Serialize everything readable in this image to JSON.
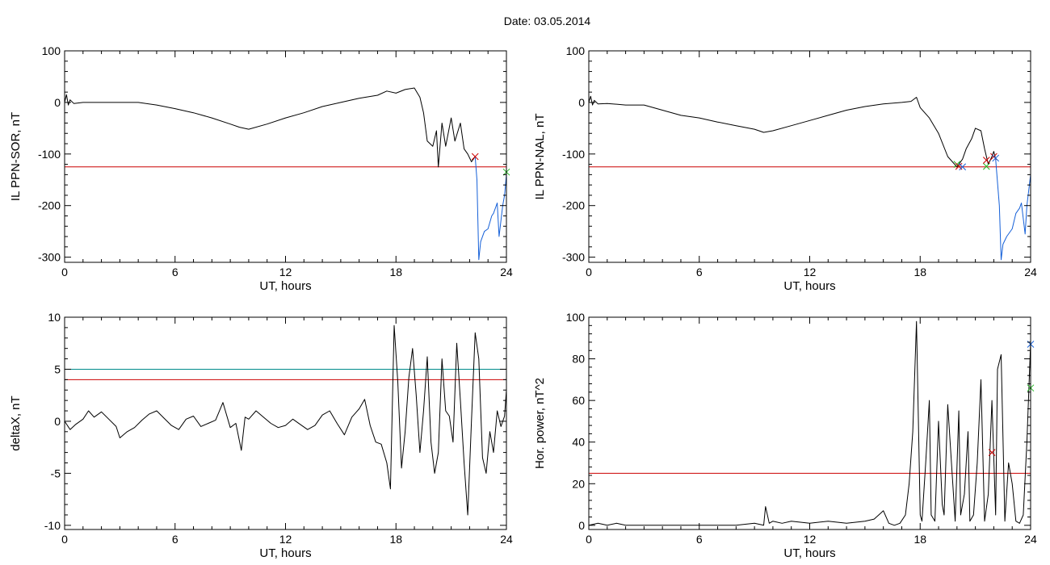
{
  "title": "Date:  03.05.2014",
  "colors": {
    "trace": "#000000",
    "threshold_red": "#cc0000",
    "threshold_cyan": "#008b8b",
    "segment_blue": "#1560d8",
    "marker_green": "#22bb22",
    "marker_red": "#cc0000",
    "marker_blue": "#1560d8"
  },
  "chart_data": [
    {
      "type": "line",
      "id": "ppn-sor",
      "xlabel": "UT, hours",
      "ylabel": "IL PPN-SOR, nT",
      "xlim": [
        0,
        24
      ],
      "ylim": [
        -310,
        100
      ],
      "xticks": [
        0,
        6,
        12,
        18,
        24
      ],
      "yticks": [
        100,
        0,
        -100,
        -200,
        -300
      ],
      "thresholds": [
        {
          "y": -125,
          "color": "red"
        }
      ],
      "series": [
        {
          "color": "black",
          "x": [
            0,
            0.1,
            0.2,
            0.3,
            0.5,
            1,
            2,
            3,
            4,
            5,
            6,
            7,
            8,
            9,
            9.5,
            10,
            11,
            12,
            13,
            14,
            15,
            16,
            17,
            17.5,
            18,
            18.5,
            19,
            19.3,
            19.5,
            19.7,
            20,
            20.2,
            20.3,
            20.5,
            20.7,
            21,
            21.2,
            21.5,
            21.7,
            21.9,
            22.1,
            22.3
          ],
          "y": [
            0,
            15,
            -5,
            5,
            -2,
            0,
            0,
            0,
            0,
            -5,
            -12,
            -20,
            -30,
            -42,
            -48,
            -52,
            -42,
            -30,
            -20,
            -8,
            0,
            8,
            14,
            22,
            18,
            25,
            28,
            10,
            -20,
            -75,
            -85,
            -55,
            -125,
            -40,
            -85,
            -30,
            -75,
            -40,
            -90,
            -100,
            -115,
            -105
          ]
        },
        {
          "color": "blue",
          "x": [
            22.3,
            22.4,
            22.5,
            22.6,
            22.8,
            23,
            23.2,
            23.3,
            23.5,
            23.6,
            23.8,
            23.9,
            24
          ],
          "y": [
            -105,
            -150,
            -305,
            -270,
            -250,
            -245,
            -220,
            -215,
            -195,
            -260,
            -200,
            -180,
            -140
          ]
        }
      ],
      "markers": [
        {
          "x": 22.3,
          "y": -105,
          "color": "red"
        },
        {
          "x": 24,
          "y": -135,
          "color": "green"
        }
      ]
    },
    {
      "type": "line",
      "id": "ppn-nal",
      "xlabel": "UT, hours",
      "ylabel": "IL PPN-NAL, nT",
      "xlim": [
        0,
        24
      ],
      "ylim": [
        -310,
        100
      ],
      "xticks": [
        0,
        6,
        12,
        18,
        24
      ],
      "yticks": [
        100,
        0,
        -100,
        -200,
        -300
      ],
      "thresholds": [
        {
          "y": -125,
          "color": "red"
        }
      ],
      "series": [
        {
          "color": "black",
          "x": [
            0,
            0.1,
            0.2,
            0.3,
            0.5,
            1,
            2,
            3,
            4,
            5,
            6,
            7,
            8,
            9,
            9.5,
            10,
            11,
            12,
            13,
            14,
            15,
            16,
            17,
            17.5,
            17.8,
            18,
            18.5,
            19,
            19.5,
            20,
            20.3,
            20.5,
            20.8,
            21,
            21.3,
            21.5,
            21.7,
            21.9,
            22,
            22.1
          ],
          "y": [
            0,
            12,
            -5,
            4,
            -3,
            -2,
            -5,
            -5,
            -15,
            -25,
            -30,
            -38,
            -45,
            -52,
            -58,
            -55,
            -45,
            -35,
            -25,
            -15,
            -8,
            -3,
            0,
            2,
            10,
            -10,
            -30,
            -60,
            -105,
            -125,
            -110,
            -90,
            -70,
            -50,
            -55,
            -90,
            -120,
            -105,
            -95,
            -110
          ]
        },
        {
          "color": "blue",
          "x": [
            22.1,
            22.3,
            22.4,
            22.5,
            22.7,
            23,
            23.2,
            23.4,
            23.5,
            23.7,
            23.8,
            24
          ],
          "y": [
            -110,
            -200,
            -305,
            -275,
            -260,
            -245,
            -215,
            -205,
            -195,
            -255,
            -200,
            -140
          ]
        }
      ],
      "markers": [
        {
          "x": 20.0,
          "y": -120,
          "color": "green"
        },
        {
          "x": 20.1,
          "y": -124,
          "color": "red"
        },
        {
          "x": 20.3,
          "y": -125,
          "color": "blue"
        },
        {
          "x": 21.6,
          "y": -124,
          "color": "green"
        },
        {
          "x": 21.6,
          "y": -112,
          "color": "red"
        },
        {
          "x": 22.0,
          "y": -105,
          "color": "red"
        },
        {
          "x": 22.1,
          "y": -108,
          "color": "blue"
        }
      ]
    },
    {
      "type": "line",
      "id": "deltax",
      "xlabel": "UT, hours",
      "ylabel": "deltaX, nT",
      "xlim": [
        0,
        24
      ],
      "ylim": [
        -10.4,
        10
      ],
      "xticks": [
        0,
        6,
        12,
        18,
        24
      ],
      "yticks": [
        10,
        5,
        0,
        -5,
        -10
      ],
      "thresholds": [
        {
          "y": 5,
          "color": "cyan"
        },
        {
          "y": 4,
          "color": "red"
        }
      ],
      "series": [
        {
          "color": "black",
          "x": [
            0,
            0.3,
            0.6,
            1,
            1.3,
            1.6,
            2,
            2.4,
            2.8,
            3,
            3.4,
            3.8,
            4.2,
            4.6,
            5,
            5.4,
            5.8,
            6.2,
            6.6,
            7,
            7.4,
            7.8,
            8.2,
            8.6,
            9,
            9.3,
            9.6,
            9.8,
            10,
            10.4,
            10.8,
            11.2,
            11.6,
            12,
            12.4,
            12.8,
            13.2,
            13.6,
            14,
            14.4,
            14.8,
            15.2,
            15.6,
            16,
            16.3,
            16.6,
            16.9,
            17.2,
            17.5,
            17.7,
            17.9,
            18.1,
            18.3,
            18.5,
            18.7,
            18.9,
            19.1,
            19.3,
            19.5,
            19.7,
            19.9,
            20.1,
            20.3,
            20.5,
            20.7,
            20.9,
            21.1,
            21.3,
            21.5,
            21.7,
            21.9,
            22.1,
            22.3,
            22.5,
            22.7,
            22.9,
            23.1,
            23.3,
            23.5,
            23.7,
            23.9,
            24
          ],
          "y": [
            0,
            -0.8,
            -0.3,
            0.2,
            1.0,
            0.4,
            0.9,
            0.2,
            -0.5,
            -1.6,
            -1.0,
            -0.6,
            0.1,
            0.7,
            1.0,
            0.3,
            -0.4,
            -0.8,
            0.2,
            0.5,
            -0.5,
            -0.2,
            0.1,
            1.8,
            -0.6,
            -0.2,
            -2.8,
            0.4,
            0.2,
            1.0,
            0.4,
            -0.2,
            -0.6,
            -0.4,
            0.2,
            -0.3,
            -0.8,
            -0.4,
            0.6,
            1.0,
            -0.2,
            -1.3,
            0.4,
            1.2,
            2.1,
            -0.4,
            -2.0,
            -2.2,
            -4.0,
            -6.5,
            9.2,
            3.8,
            -4.5,
            -1.0,
            4.2,
            7.0,
            2.5,
            -3.0,
            1.0,
            6.2,
            -2.0,
            -5.0,
            -3.0,
            6.0,
            1.0,
            0.5,
            -2.0,
            7.5,
            2.0,
            -4.0,
            -9.0,
            0.0,
            8.5,
            6.0,
            -3.5,
            -5.0,
            -1.0,
            -3.0,
            1.0,
            -0.5,
            0.5,
            3.0
          ]
        }
      ],
      "markers": []
    },
    {
      "type": "line",
      "id": "hor-power",
      "xlabel": "UT, hours",
      "ylabel": "Hor. power, nT^2",
      "xlim": [
        0,
        24
      ],
      "ylim": [
        -2,
        100
      ],
      "xticks": [
        0,
        6,
        12,
        18,
        24
      ],
      "yticks": [
        100,
        80,
        60,
        40,
        20,
        0
      ],
      "thresholds": [
        {
          "y": 25,
          "color": "red"
        }
      ],
      "series": [
        {
          "color": "black",
          "x": [
            0,
            0.5,
            1,
            1.5,
            2,
            3,
            4,
            5,
            6,
            7,
            8,
            9,
            9.5,
            9.6,
            9.8,
            10,
            10.5,
            11,
            12,
            13,
            14,
            15,
            15.5,
            16,
            16.3,
            16.6,
            16.9,
            17.2,
            17.4,
            17.6,
            17.8,
            18.0,
            18.1,
            18.3,
            18.5,
            18.6,
            18.8,
            19.0,
            19.2,
            19.3,
            19.5,
            19.7,
            19.9,
            20.1,
            20.2,
            20.4,
            20.6,
            20.7,
            20.9,
            21.1,
            21.3,
            21.5,
            21.7,
            21.9,
            22.1,
            22.2,
            22.4,
            22.6,
            22.8,
            23.0,
            23.2,
            23.4,
            23.6,
            23.8,
            24
          ],
          "y": [
            0,
            1,
            0,
            1,
            0,
            0,
            0,
            0,
            0,
            0,
            0,
            1,
            0,
            9,
            1,
            2,
            1,
            2,
            1,
            2,
            1,
            2,
            3,
            7,
            1,
            0,
            1,
            5,
            20,
            45,
            98,
            5,
            2,
            30,
            60,
            5,
            2,
            50,
            10,
            5,
            58,
            30,
            2,
            55,
            5,
            15,
            45,
            2,
            5,
            30,
            70,
            2,
            15,
            60,
            5,
            75,
            82,
            2,
            30,
            20,
            2,
            1,
            5,
            40,
            88
          ]
        }
      ],
      "markers": [
        {
          "x": 21.9,
          "y": 35,
          "color": "red"
        },
        {
          "x": 24,
          "y": 87,
          "color": "blue"
        },
        {
          "x": 24,
          "y": 66,
          "color": "green"
        }
      ]
    }
  ]
}
